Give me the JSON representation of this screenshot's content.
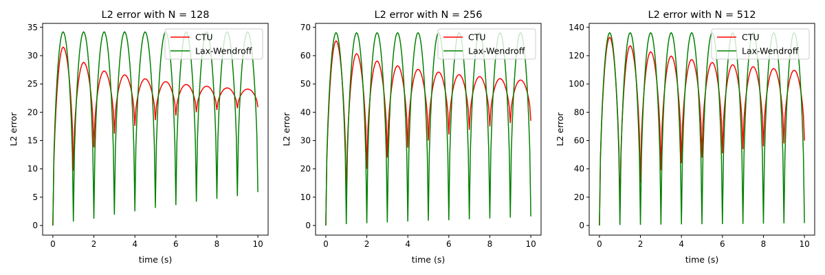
{
  "chart_data": [
    {
      "type": "line",
      "title": "L2 error with N = 128",
      "xlabel": "time (s)",
      "ylabel": "L2 error",
      "xlim": [
        -0.5,
        10.5
      ],
      "ylim": [
        -1.7,
        35.7
      ],
      "xticks": [
        0,
        2,
        4,
        6,
        8,
        10
      ],
      "yticks": [
        0,
        5,
        10,
        15,
        20,
        25,
        30,
        35
      ],
      "legend": "upper right",
      "grid": false,
      "series": [
        {
          "name": "CTU",
          "color": "#ff0000",
          "model": {
            "base": 0,
            "amp": [
              31.5,
              28.8,
              27.3,
              26.6,
              25.9,
              25.4,
              24.9,
              24.6,
              24.3,
              24.1
            ],
            "min": [
              9.7,
              13.8,
              16.2,
              17.6,
              18.6,
              19.4,
              20.0,
              20.4,
              20.7,
              20.9
            ]
          }
        },
        {
          "name": "Lax-Wendroff",
          "color": "#008000",
          "model": {
            "base": 0,
            "amp": [
              34.2,
              34.2,
              34.2,
              34.2,
              34.2,
              34.2,
              34.2,
              34.2,
              34.2,
              34.2
            ],
            "min": [
              0.7,
              1.2,
              1.9,
              2.5,
              3.1,
              3.6,
              4.2,
              4.7,
              5.2,
              5.9
            ]
          }
        }
      ]
    },
    {
      "type": "line",
      "title": "L2 error with N = 256",
      "xlabel": "time (s)",
      "ylabel": "L2 error",
      "xlim": [
        -0.5,
        10.5
      ],
      "ylim": [
        -3.4,
        71.4
      ],
      "xticks": [
        0,
        2,
        4,
        6,
        8,
        10
      ],
      "yticks": [
        0,
        10,
        20,
        30,
        40,
        50,
        60,
        70
      ],
      "legend": "upper right",
      "grid": false,
      "series": [
        {
          "name": "CTU",
          "color": "#ff0000",
          "model": {
            "base": 0,
            "amp": [
              65.2,
              60.7,
              58.1,
              56.4,
              55.2,
              54.2,
              53.3,
              52.6,
              51.9,
              51.4
            ],
            "min": [
              10.0,
              20.0,
              24.0,
              27.5,
              30.0,
              32.2,
              33.8,
              35.0,
              36.2,
              37.0
            ]
          }
        },
        {
          "name": "Lax-Wendroff",
          "color": "#008000",
          "model": {
            "base": 0,
            "amp": [
              68.1,
              68.1,
              68.1,
              68.1,
              68.1,
              68.1,
              68.1,
              68.1,
              68.1,
              68.1
            ],
            "min": [
              0.5,
              0.8,
              1.1,
              1.4,
              1.7,
              1.9,
              2.2,
              2.5,
              2.8,
              3.2
            ]
          }
        }
      ]
    },
    {
      "type": "line",
      "title": "L2 error with N = 512",
      "xlabel": "time (s)",
      "ylabel": "L2 error",
      "xlim": [
        -0.5,
        10.5
      ],
      "ylim": [
        -6.8,
        142.8
      ],
      "xticks": [
        0,
        2,
        4,
        6,
        8,
        10
      ],
      "yticks": [
        0,
        20,
        40,
        60,
        80,
        100,
        120,
        140
      ],
      "legend": "upper right",
      "grid": false,
      "series": [
        {
          "name": "CTU",
          "color": "#ff0000",
          "model": {
            "base": 0,
            "amp": [
              133.0,
              127.0,
              122.7,
              119.7,
              117.3,
              115.2,
              113.6,
              112.2,
              110.9,
              109.7
            ],
            "min": [
              10.0,
              30.0,
              39.0,
              44.0,
              48.0,
              51.0,
              54.0,
              56.0,
              58.0,
              60.0
            ]
          }
        },
        {
          "name": "Lax-Wendroff",
          "color": "#008000",
          "model": {
            "base": 0,
            "amp": [
              136.2,
              136.2,
              136.2,
              136.2,
              136.2,
              136.2,
              136.2,
              136.2,
              136.2,
              136.2
            ],
            "min": [
              0.4,
              0.5,
              0.6,
              0.8,
              0.9,
              1.0,
              1.1,
              1.3,
              1.5,
              1.7
            ]
          }
        }
      ]
    }
  ]
}
